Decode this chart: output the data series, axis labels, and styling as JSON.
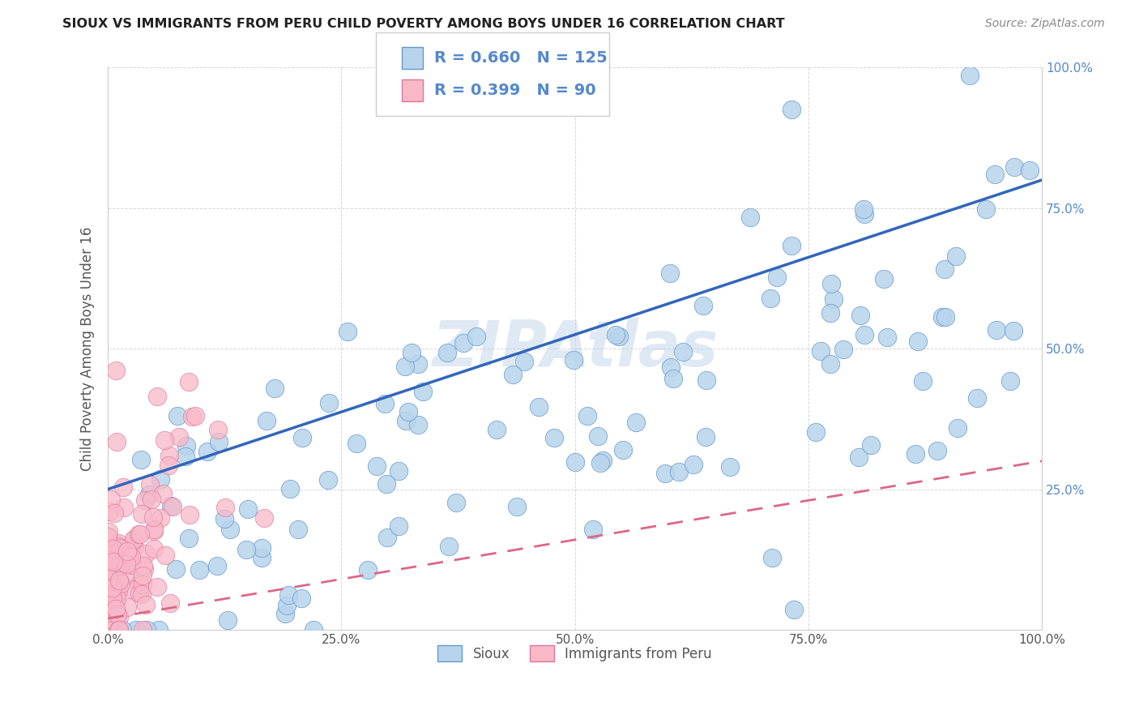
{
  "title": "SIOUX VS IMMIGRANTS FROM PERU CHILD POVERTY AMONG BOYS UNDER 16 CORRELATION CHART",
  "source": "Source: ZipAtlas.com",
  "ylabel": "Child Poverty Among Boys Under 16",
  "xlabel": "",
  "watermark": "ZIPAtlas",
  "xlim": [
    0.0,
    1.0
  ],
  "ylim": [
    0.0,
    1.0
  ],
  "xticks": [
    0.0,
    0.25,
    0.5,
    0.75,
    1.0
  ],
  "xtick_labels": [
    "0.0%",
    "25.0%",
    "50.0%",
    "75.0%",
    "100.0%"
  ],
  "ytick_labels_right": [
    "25.0%",
    "50.0%",
    "75.0%",
    "100.0%"
  ],
  "sioux_R": 0.66,
  "sioux_N": 125,
  "peru_R": 0.399,
  "peru_N": 90,
  "sioux_color": "#b8d4ec",
  "sioux_edge_color": "#6699cc",
  "sioux_line_color": "#3366bb",
  "peru_color": "#f8b8c8",
  "peru_edge_color": "#dd7799",
  "peru_line_color": "#dd6688",
  "background_color": "#ffffff",
  "grid_color": "#cccccc",
  "title_color": "#222222",
  "source_color": "#888888",
  "legend_label_sioux": "Sioux",
  "legend_label_peru": "Immigrants from Peru",
  "ytick_color": "#5588cc",
  "xtick_color": "#555555"
}
